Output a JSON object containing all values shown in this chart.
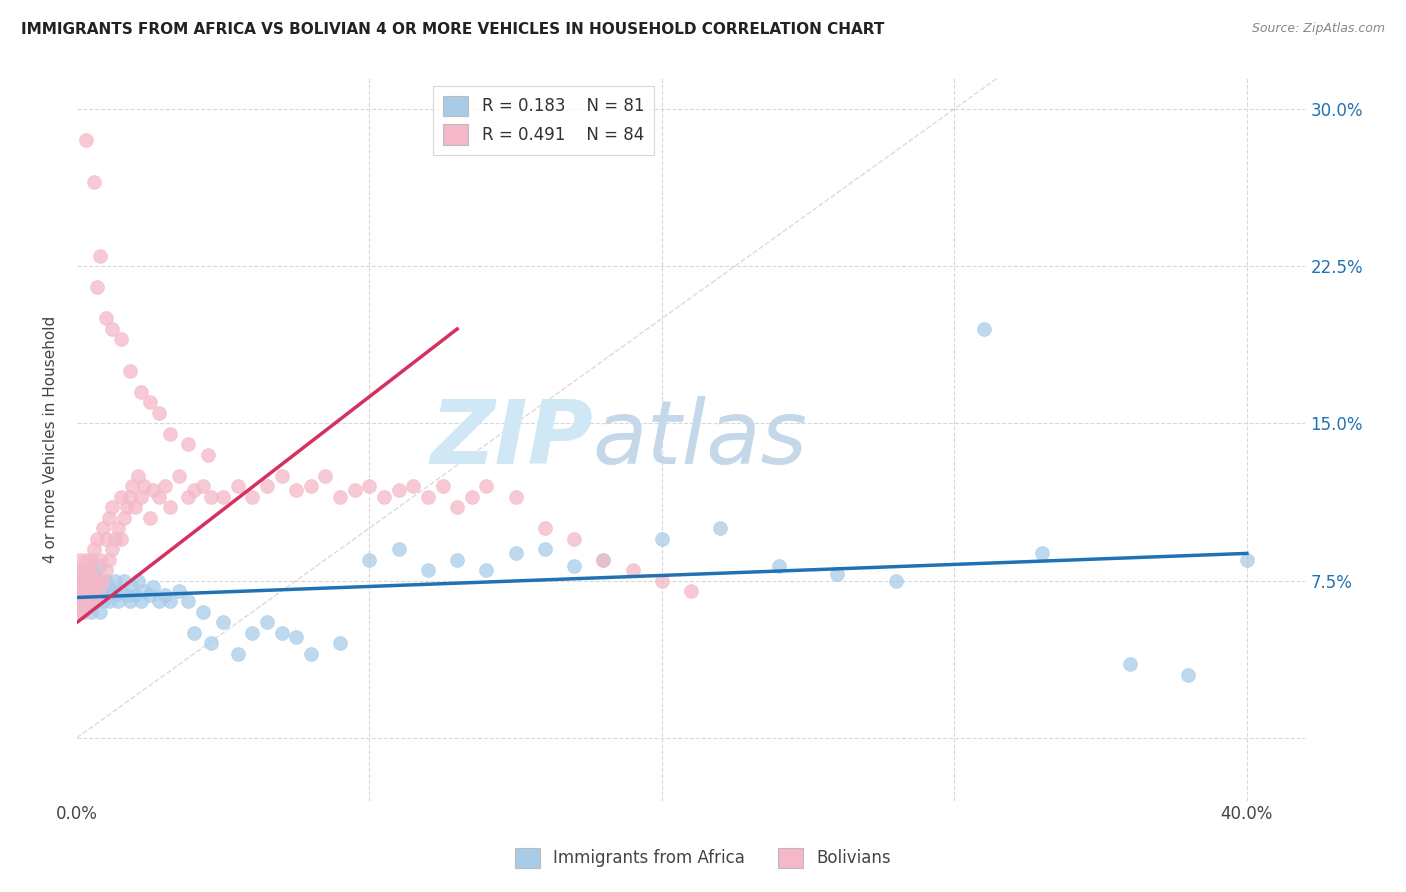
{
  "title": "IMMIGRANTS FROM AFRICA VS BOLIVIAN 4 OR MORE VEHICLES IN HOUSEHOLD CORRELATION CHART",
  "source": "Source: ZipAtlas.com",
  "ylabel": "4 or more Vehicles in Household",
  "ytick_vals": [
    0.0,
    0.075,
    0.15,
    0.225,
    0.3
  ],
  "ytick_labels": [
    "",
    "7.5%",
    "15.0%",
    "22.5%",
    "30.0%"
  ],
  "xtick_vals": [
    0.0,
    0.1,
    0.2,
    0.3,
    0.4
  ],
  "xtick_labels": [
    "0.0%",
    "",
    "",
    "",
    "40.0%"
  ],
  "xlim": [
    0.0,
    0.42
  ],
  "ylim": [
    -0.03,
    0.315
  ],
  "color_blue": "#a8cce8",
  "color_pink": "#f4b8c8",
  "line_blue": "#2171b5",
  "line_pink": "#d63060",
  "diag_color": "#cccccc",
  "grid_color": "#d8d8d8",
  "watermark_zip_color": "#d0e8f5",
  "watermark_atlas_color": "#c4d8ea",
  "africa_x": [
    0.001,
    0.001,
    0.001,
    0.002,
    0.002,
    0.002,
    0.002,
    0.003,
    0.003,
    0.003,
    0.003,
    0.004,
    0.004,
    0.004,
    0.005,
    0.005,
    0.005,
    0.006,
    0.006,
    0.007,
    0.007,
    0.007,
    0.008,
    0.008,
    0.008,
    0.009,
    0.009,
    0.01,
    0.01,
    0.011,
    0.011,
    0.012,
    0.013,
    0.013,
    0.014,
    0.015,
    0.016,
    0.017,
    0.018,
    0.019,
    0.02,
    0.021,
    0.022,
    0.023,
    0.025,
    0.026,
    0.028,
    0.03,
    0.032,
    0.035,
    0.038,
    0.04,
    0.043,
    0.046,
    0.05,
    0.055,
    0.06,
    0.065,
    0.07,
    0.075,
    0.08,
    0.09,
    0.1,
    0.11,
    0.12,
    0.13,
    0.14,
    0.15,
    0.16,
    0.17,
    0.18,
    0.2,
    0.22,
    0.24,
    0.26,
    0.28,
    0.31,
    0.33,
    0.36,
    0.38,
    0.4
  ],
  "africa_y": [
    0.065,
    0.07,
    0.075,
    0.06,
    0.068,
    0.072,
    0.078,
    0.065,
    0.07,
    0.075,
    0.062,
    0.068,
    0.075,
    0.08,
    0.065,
    0.072,
    0.06,
    0.07,
    0.078,
    0.065,
    0.072,
    0.068,
    0.06,
    0.075,
    0.082,
    0.065,
    0.07,
    0.075,
    0.068,
    0.072,
    0.065,
    0.07,
    0.068,
    0.075,
    0.065,
    0.07,
    0.075,
    0.068,
    0.065,
    0.072,
    0.068,
    0.075,
    0.065,
    0.07,
    0.068,
    0.072,
    0.065,
    0.068,
    0.065,
    0.07,
    0.065,
    0.05,
    0.06,
    0.045,
    0.055,
    0.04,
    0.05,
    0.055,
    0.05,
    0.048,
    0.04,
    0.045,
    0.085,
    0.09,
    0.08,
    0.085,
    0.08,
    0.088,
    0.09,
    0.082,
    0.085,
    0.095,
    0.1,
    0.082,
    0.078,
    0.075,
    0.195,
    0.088,
    0.035,
    0.03,
    0.085
  ],
  "bolivia_x": [
    0.001,
    0.001,
    0.001,
    0.001,
    0.001,
    0.001,
    0.002,
    0.002,
    0.002,
    0.002,
    0.002,
    0.003,
    0.003,
    0.003,
    0.003,
    0.004,
    0.004,
    0.004,
    0.005,
    0.005,
    0.005,
    0.006,
    0.006,
    0.007,
    0.007,
    0.007,
    0.008,
    0.008,
    0.009,
    0.009,
    0.01,
    0.01,
    0.011,
    0.011,
    0.012,
    0.012,
    0.013,
    0.014,
    0.015,
    0.015,
    0.016,
    0.017,
    0.018,
    0.019,
    0.02,
    0.021,
    0.022,
    0.023,
    0.025,
    0.026,
    0.028,
    0.03,
    0.032,
    0.035,
    0.038,
    0.04,
    0.043,
    0.046,
    0.05,
    0.055,
    0.06,
    0.065,
    0.07,
    0.075,
    0.08,
    0.085,
    0.09,
    0.095,
    0.1,
    0.105,
    0.11,
    0.115,
    0.12,
    0.125,
    0.13,
    0.135,
    0.14,
    0.15,
    0.16,
    0.17,
    0.18,
    0.19,
    0.2,
    0.21
  ],
  "bolivia_y": [
    0.06,
    0.065,
    0.07,
    0.075,
    0.08,
    0.085,
    0.06,
    0.065,
    0.07,
    0.075,
    0.08,
    0.065,
    0.07,
    0.075,
    0.085,
    0.068,
    0.075,
    0.082,
    0.065,
    0.078,
    0.085,
    0.075,
    0.09,
    0.068,
    0.075,
    0.095,
    0.072,
    0.085,
    0.075,
    0.1,
    0.08,
    0.095,
    0.085,
    0.105,
    0.09,
    0.11,
    0.095,
    0.1,
    0.095,
    0.115,
    0.105,
    0.11,
    0.115,
    0.12,
    0.11,
    0.125,
    0.115,
    0.12,
    0.105,
    0.118,
    0.115,
    0.12,
    0.11,
    0.125,
    0.115,
    0.118,
    0.12,
    0.115,
    0.115,
    0.12,
    0.115,
    0.12,
    0.125,
    0.118,
    0.12,
    0.125,
    0.115,
    0.118,
    0.12,
    0.115,
    0.118,
    0.12,
    0.115,
    0.12,
    0.11,
    0.115,
    0.12,
    0.115,
    0.1,
    0.095,
    0.085,
    0.08,
    0.075,
    0.07
  ],
  "bolivia_y_outliers": [
    0.265,
    0.285,
    0.23,
    0.215,
    0.2,
    0.195,
    0.19,
    0.175,
    0.165,
    0.16,
    0.155,
    0.145,
    0.14,
    0.135
  ],
  "bolivia_x_outliers": [
    0.006,
    0.003,
    0.008,
    0.007,
    0.01,
    0.012,
    0.015,
    0.018,
    0.022,
    0.025,
    0.028,
    0.032,
    0.038,
    0.045
  ]
}
